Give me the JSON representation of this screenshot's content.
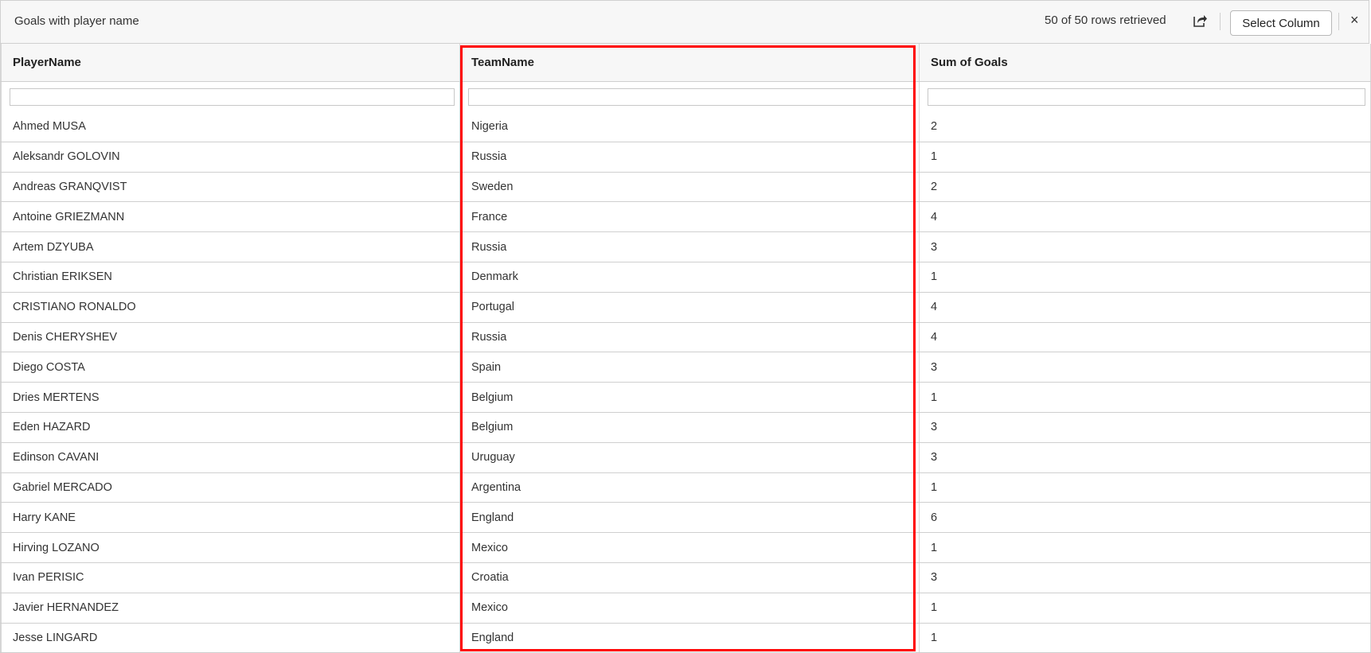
{
  "header": {
    "title": "Goals with player name",
    "rows_info": "50 of 50 rows retrieved",
    "select_column_label": "Select Column",
    "close_label": "×"
  },
  "columns": [
    "PlayerName",
    "TeamName",
    "Sum of Goals"
  ],
  "highlight_color": "#ff0000",
  "rows": [
    [
      "Ahmed MUSA",
      "Nigeria",
      "2"
    ],
    [
      "Aleksandr GOLOVIN",
      "Russia",
      "1"
    ],
    [
      "Andreas GRANQVIST",
      "Sweden",
      "2"
    ],
    [
      "Antoine GRIEZMANN",
      "France",
      "4"
    ],
    [
      "Artem DZYUBA",
      "Russia",
      "3"
    ],
    [
      "Christian ERIKSEN",
      "Denmark",
      "1"
    ],
    [
      "CRISTIANO RONALDO",
      "Portugal",
      "4"
    ],
    [
      "Denis CHERYSHEV",
      "Russia",
      "4"
    ],
    [
      "Diego COSTA",
      "Spain",
      "3"
    ],
    [
      "Dries MERTENS",
      "Belgium",
      "1"
    ],
    [
      "Eden HAZARD",
      "Belgium",
      "3"
    ],
    [
      "Edinson CAVANI",
      "Uruguay",
      "3"
    ],
    [
      "Gabriel MERCADO",
      "Argentina",
      "1"
    ],
    [
      "Harry KANE",
      "England",
      "6"
    ],
    [
      "Hirving LOZANO",
      "Mexico",
      "1"
    ],
    [
      "Ivan PERISIC",
      "Croatia",
      "3"
    ],
    [
      "Javier HERNANDEZ",
      "Mexico",
      "1"
    ],
    [
      "Jesse LINGARD",
      "England",
      "1"
    ]
  ]
}
